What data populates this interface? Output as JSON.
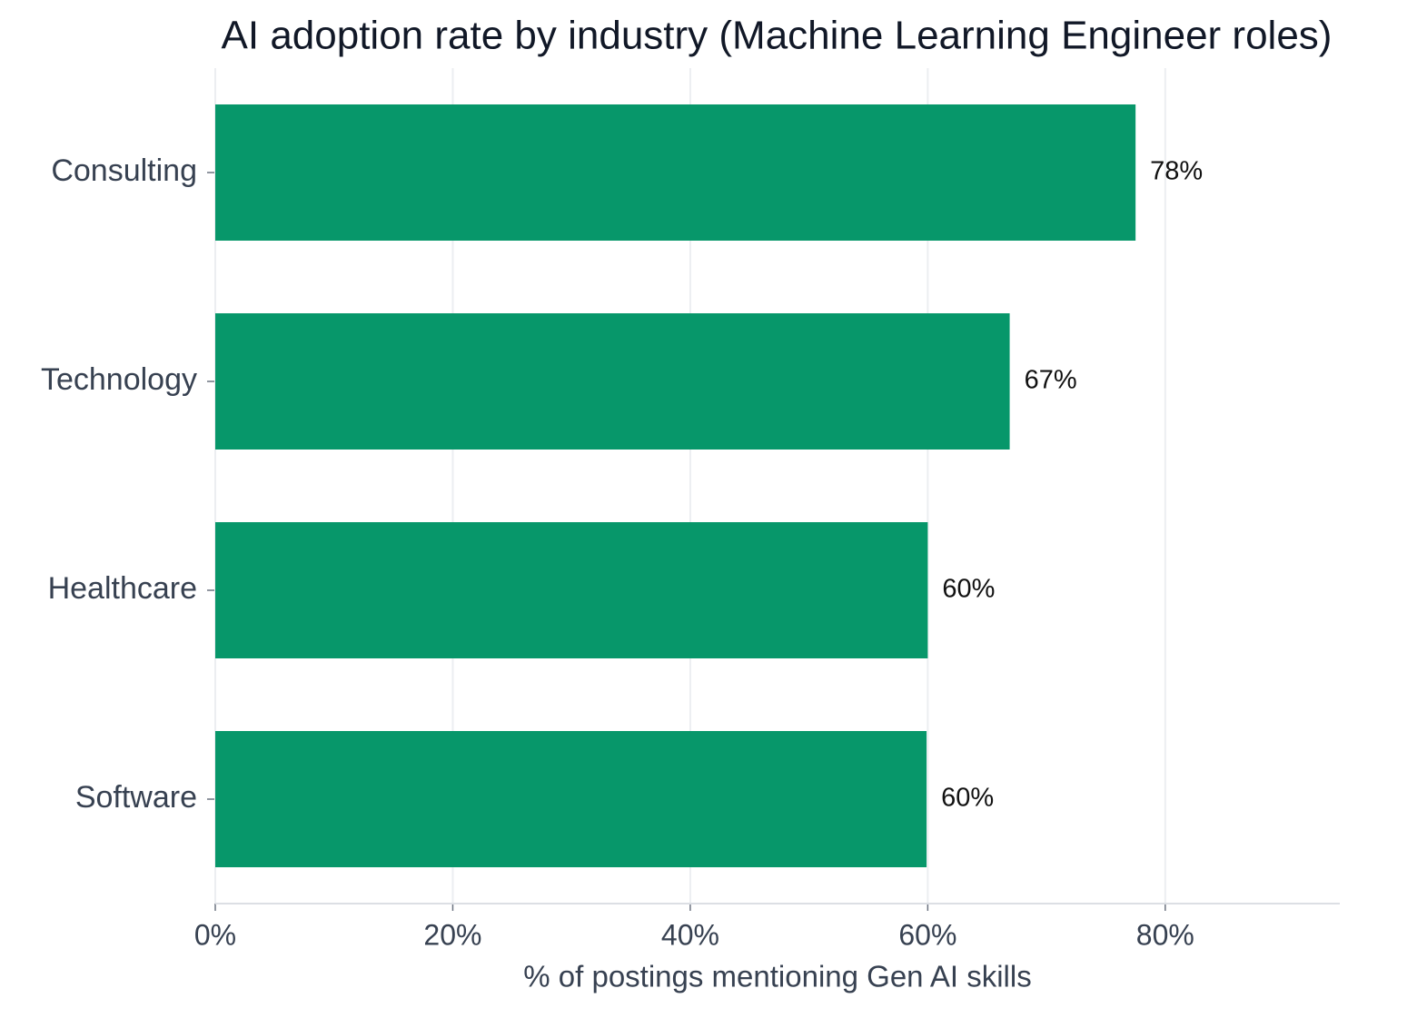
{
  "chart_data": {
    "type": "barh",
    "title": "AI adoption rate by industry (Machine Learning Engineer roles)",
    "x_label": "% of postings mentioning Gen AI skills",
    "categories": [
      "Consulting",
      "Technology",
      "Healthcare",
      "Software"
    ],
    "values": [
      77.5,
      66.9,
      60.0,
      59.9
    ],
    "value_labels": [
      "78%",
      "67%",
      "60%",
      "60%"
    ],
    "color": "#07976a",
    "xlim": [
      0,
      94.7
    ],
    "xticks": [
      {
        "value": 0,
        "label": "0%"
      },
      {
        "value": 20,
        "label": "20%"
      },
      {
        "value": 40,
        "label": "40%"
      },
      {
        "value": 60,
        "label": "60%"
      },
      {
        "value": 80,
        "label": "80%"
      }
    ],
    "grid": true
  }
}
